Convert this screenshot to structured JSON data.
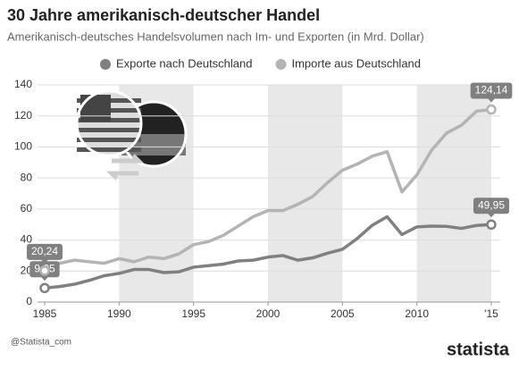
{
  "chart_data": {
    "type": "line",
    "title": "30 Jahre amerikanisch-deutscher Handel",
    "subtitle": "Amerikanisch-deutsches Handelsvolumen nach Im- und Exporten (in Mrd. Dollar)",
    "x": [
      1985,
      1986,
      1987,
      1988,
      1989,
      1990,
      1991,
      1992,
      1993,
      1994,
      1995,
      1996,
      1997,
      1998,
      1999,
      2000,
      2001,
      2002,
      2003,
      2004,
      2005,
      2006,
      2007,
      2008,
      2009,
      2010,
      2011,
      2012,
      2013,
      2014,
      2015
    ],
    "series": [
      {
        "name": "Exporte nach Deutschland",
        "color": "#808080",
        "values": [
          9.05,
          10,
          11.5,
          14,
          17,
          18.5,
          21,
          21,
          19,
          19.5,
          22.5,
          23.5,
          24.5,
          26.5,
          27,
          29,
          30,
          27,
          28.5,
          31.5,
          34,
          41,
          49.5,
          55,
          43.5,
          48.5,
          49,
          48.8,
          47.5,
          49.4,
          49.95
        ],
        "value_labels": [
          "9,05",
          null,
          null,
          null,
          null,
          null,
          null,
          null,
          null,
          null,
          null,
          null,
          null,
          null,
          null,
          null,
          null,
          null,
          null,
          null,
          null,
          null,
          null,
          null,
          null,
          null,
          null,
          null,
          null,
          null,
          "49,95"
        ]
      },
      {
        "name": "Importe aus Deutschland",
        "color": "#b4b4b4",
        "values": [
          20.24,
          25,
          27,
          26,
          25,
          28,
          26,
          29,
          28,
          31,
          37,
          39,
          43,
          49,
          55,
          59,
          59,
          63,
          68,
          77,
          85,
          89,
          94,
          97,
          71,
          82,
          98,
          109,
          114,
          123,
          124.14
        ],
        "value_labels": [
          "20,24",
          null,
          null,
          null,
          null,
          null,
          null,
          null,
          null,
          null,
          null,
          null,
          null,
          null,
          null,
          null,
          null,
          null,
          null,
          null,
          null,
          null,
          null,
          null,
          null,
          null,
          null,
          null,
          null,
          null,
          "124,14"
        ]
      }
    ],
    "xlim": [
      1985,
      2015
    ],
    "xticks": [
      1985,
      1990,
      1995,
      2000,
      2005,
      2010,
      {
        "value": 2015,
        "label": "'15"
      }
    ],
    "ylim": [
      0,
      140
    ],
    "yticks": [
      0,
      20,
      40,
      60,
      80,
      100,
      120,
      140
    ],
    "grid": true,
    "legend": "top",
    "footer": {
      "source": "@Statista_com",
      "brand": "statista"
    }
  }
}
